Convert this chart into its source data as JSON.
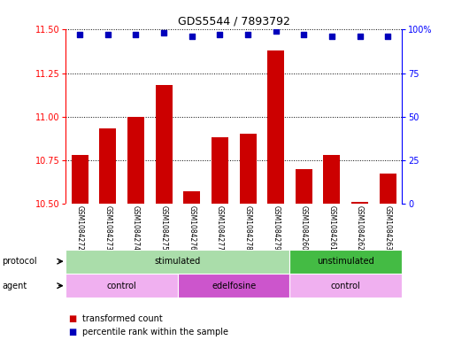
{
  "title": "GDS5544 / 7893792",
  "samples": [
    "GSM1084272",
    "GSM1084273",
    "GSM1084274",
    "GSM1084275",
    "GSM1084276",
    "GSM1084277",
    "GSM1084278",
    "GSM1084279",
    "GSM1084260",
    "GSM1084261",
    "GSM1084262",
    "GSM1084263"
  ],
  "bar_values": [
    10.78,
    10.93,
    11.0,
    11.18,
    10.57,
    10.88,
    10.9,
    11.38,
    10.7,
    10.78,
    10.51,
    10.67
  ],
  "percentile_values": [
    97,
    97,
    97,
    98,
    96,
    97,
    97,
    99,
    97,
    96,
    96,
    96
  ],
  "ylim_left": [
    10.5,
    11.5
  ],
  "ylim_right": [
    0,
    100
  ],
  "yticks_left": [
    10.5,
    10.75,
    11.0,
    11.25,
    11.5
  ],
  "yticks_right": [
    0,
    25,
    50,
    75,
    100
  ],
  "bar_color": "#cc0000",
  "dot_color": "#0000bb",
  "bar_width": 0.6,
  "protocol_groups": [
    {
      "label": "stimulated",
      "start": 0,
      "end": 7,
      "color": "#aaddaa"
    },
    {
      "label": "unstimulated",
      "start": 8,
      "end": 11,
      "color": "#44bb44"
    }
  ],
  "agent_groups": [
    {
      "label": "control",
      "start": 0,
      "end": 3,
      "color": "#f0b0f0"
    },
    {
      "label": "edelfosine",
      "start": 4,
      "end": 7,
      "color": "#cc55cc"
    },
    {
      "label": "control",
      "start": 8,
      "end": 11,
      "color": "#f0b0f0"
    }
  ],
  "legend_items": [
    {
      "label": "transformed count",
      "color": "#cc0000"
    },
    {
      "label": "percentile rank within the sample",
      "color": "#0000bb"
    }
  ],
  "protocol_label": "protocol",
  "agent_label": "agent",
  "background_color": "#ffffff",
  "panel_bg": "#cccccc",
  "title_fontsize": 9,
  "axis_fontsize": 7,
  "label_fontsize": 6,
  "legend_fontsize": 7
}
